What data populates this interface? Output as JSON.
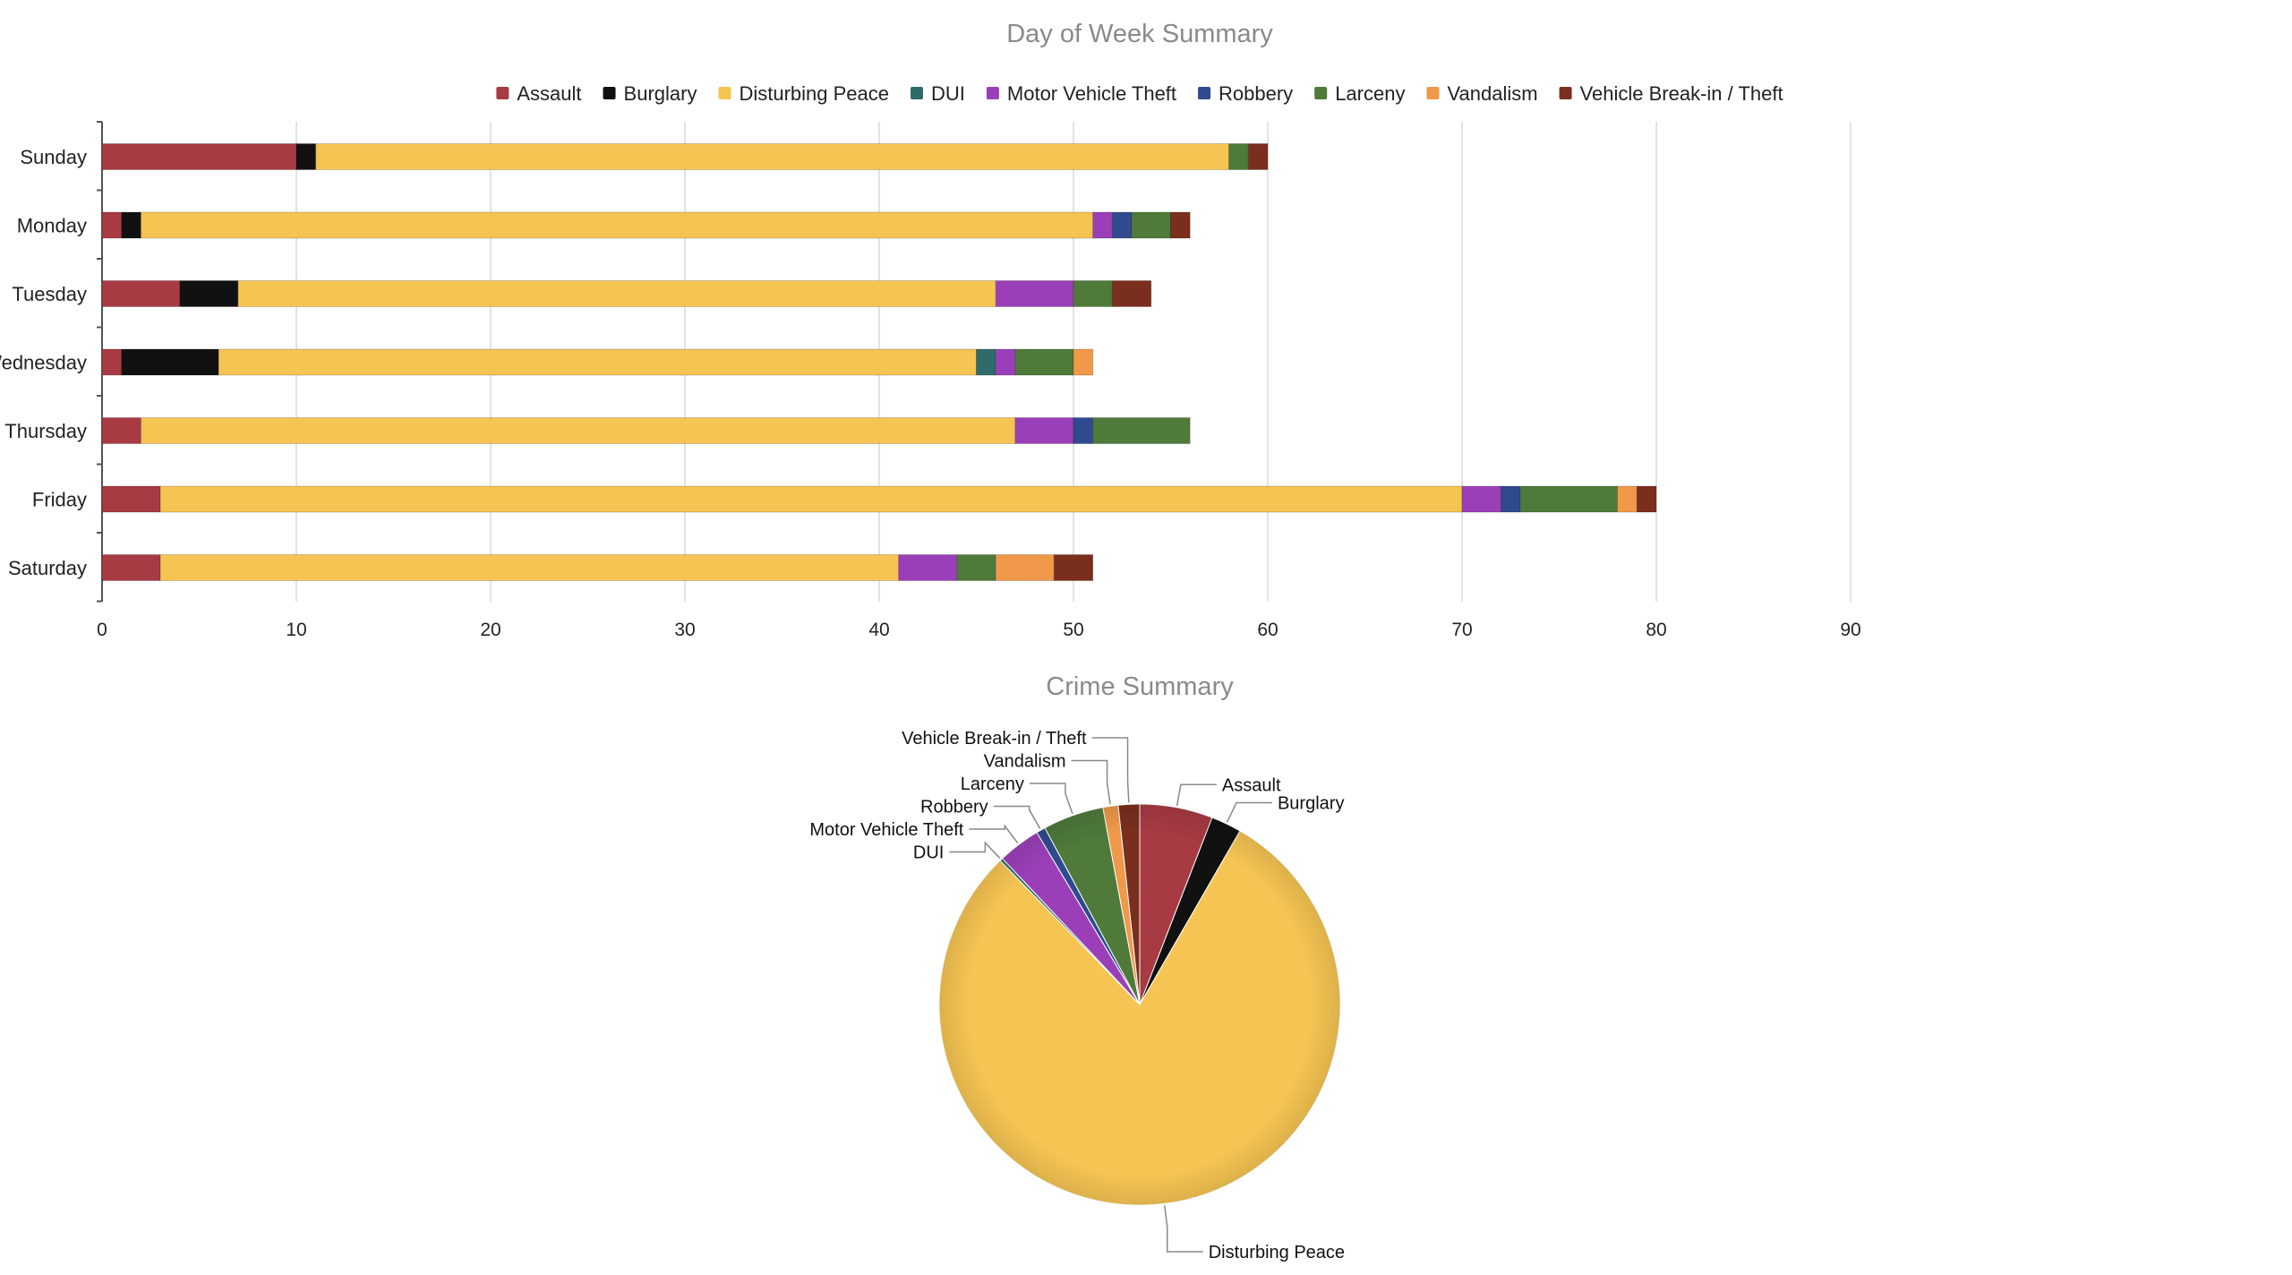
{
  "chart_data": [
    {
      "type": "bar",
      "orientation": "horizontal",
      "stacked": true,
      "title": "Day of Week Summary",
      "legend_position": "top",
      "grid": true,
      "xlim": [
        0,
        90
      ],
      "x_ticks": [
        "0",
        "10",
        "20",
        "30",
        "40",
        "50",
        "60",
        "70",
        "80",
        "90"
      ],
      "categories": [
        "Sunday",
        "Monday",
        "Tuesday",
        "Wednesday",
        "Thursday",
        "Friday",
        "Saturday"
      ],
      "series": [
        {
          "name": "Assault",
          "color": "#a83a43",
          "values": [
            10,
            1,
            4,
            1,
            2,
            3,
            3
          ]
        },
        {
          "name": "Burglary",
          "color": "#111111",
          "values": [
            1,
            1,
            3,
            5,
            0,
            0,
            0
          ]
        },
        {
          "name": "Disturbing Peace",
          "color": "#f5c453",
          "values": [
            47,
            49,
            39,
            39,
            45,
            67,
            38
          ]
        },
        {
          "name": "DUI",
          "color": "#2f6b6b",
          "values": [
            0,
            0,
            0,
            1,
            0,
            0,
            0
          ]
        },
        {
          "name": "Motor Vehicle Theft",
          "color": "#9b3fb8",
          "values": [
            0,
            1,
            4,
            1,
            3,
            2,
            3
          ]
        },
        {
          "name": "Robbery",
          "color": "#2f4a8f",
          "values": [
            0,
            1,
            0,
            0,
            1,
            1,
            0
          ]
        },
        {
          "name": "Larceny",
          "color": "#4f7a3a",
          "values": [
            1,
            2,
            2,
            3,
            5,
            5,
            2
          ]
        },
        {
          "name": "Vandalism",
          "color": "#f0994a",
          "values": [
            0,
            0,
            0,
            1,
            0,
            1,
            3
          ]
        },
        {
          "name": "Vehicle Break-in / Theft",
          "color": "#7a2e1e",
          "values": [
            1,
            1,
            2,
            0,
            0,
            1,
            2
          ]
        }
      ]
    },
    {
      "type": "pie",
      "title": "Crime Summary",
      "labels": [
        "Assault",
        "Burglary",
        "Disturbing Peace",
        "DUI",
        "Motor Vehicle Theft",
        "Robbery",
        "Larceny",
        "Vandalism",
        "Vehicle Break-in / Theft"
      ],
      "values": [
        24,
        10,
        324,
        1,
        14,
        3,
        20,
        5,
        7
      ],
      "colors": [
        "#a83a43",
        "#111111",
        "#f5c453",
        "#2f6b6b",
        "#9b3fb8",
        "#2f4a8f",
        "#4f7a3a",
        "#f0994a",
        "#7a2e1e"
      ]
    }
  ]
}
